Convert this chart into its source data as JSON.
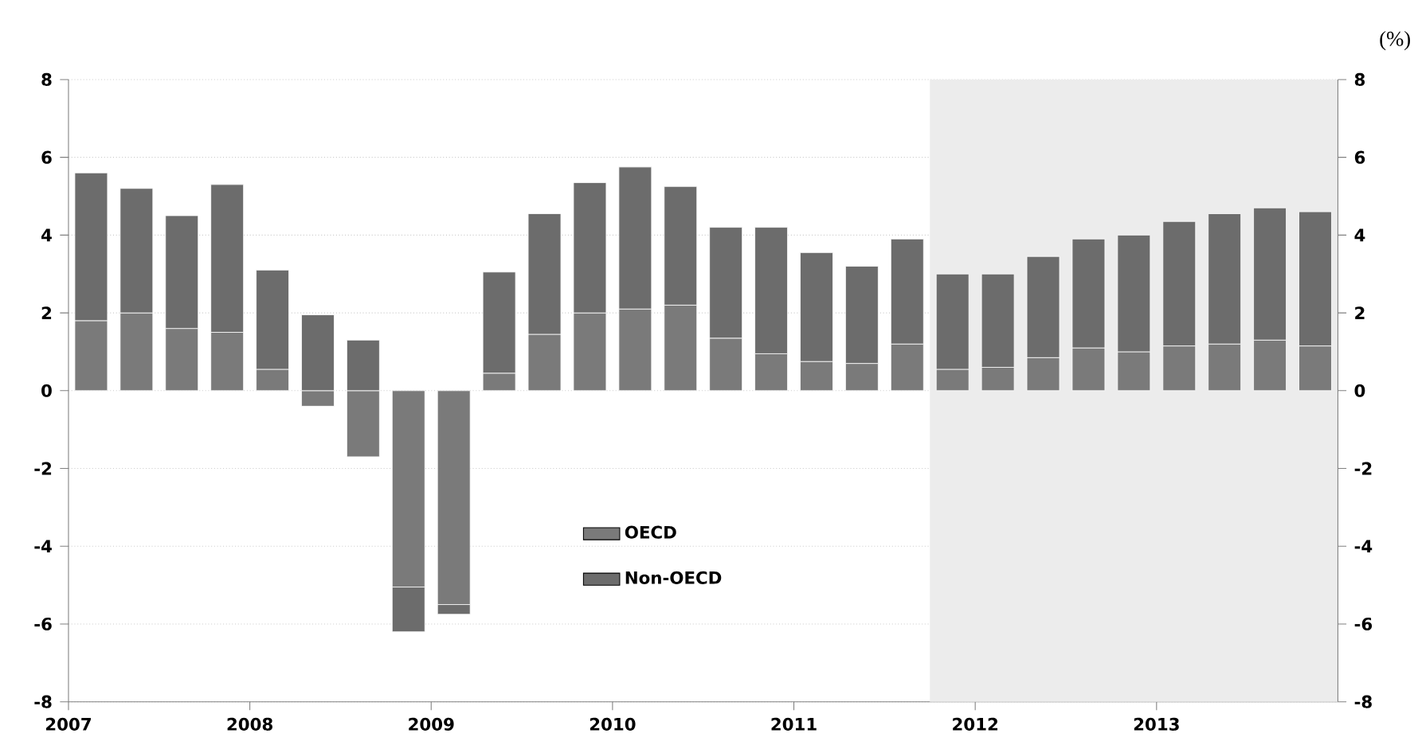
{
  "chart_data": {
    "type": "bar",
    "stacked": true,
    "y2label": "(%)",
    "x": [
      2007.125,
      2007.375,
      2007.625,
      2007.875,
      2008.125,
      2008.375,
      2008.625,
      2008.875,
      2009.125,
      2009.375,
      2009.625,
      2009.875,
      2010.125,
      2010.375,
      2010.625,
      2010.875,
      2011.125,
      2011.375,
      2011.625,
      2011.875,
      2012.125,
      2012.375,
      2012.625,
      2012.875,
      2013.125,
      2013.375,
      2013.625,
      2013.875
    ],
    "series": [
      {
        "name": "OECD",
        "color": "#7a7a7a",
        "values": [
          1.8,
          2.0,
          1.6,
          1.5,
          0.55,
          -0.4,
          -1.7,
          -5.05,
          -5.5,
          0.45,
          1.45,
          2.0,
          2.1,
          2.2,
          1.35,
          0.95,
          0.75,
          0.7,
          1.2,
          0.55,
          0.6,
          0.85,
          1.1,
          1.0,
          1.15,
          1.2,
          1.3,
          1.15
        ]
      },
      {
        "name": "Non-OECD",
        "color": "#6c6c6c",
        "values": [
          3.8,
          3.2,
          2.9,
          3.8,
          2.55,
          1.95,
          1.3,
          -1.15,
          -0.25,
          2.6,
          3.1,
          3.35,
          3.65,
          3.05,
          2.85,
          3.25,
          2.8,
          2.5,
          2.7,
          2.45,
          2.4,
          2.6,
          2.8,
          3.0,
          3.2,
          3.35,
          3.4,
          3.45
        ]
      }
    ],
    "xlim": [
      2007,
      2014
    ],
    "xticks": [
      2007,
      2008,
      2009,
      2010,
      2011,
      2012,
      2013
    ],
    "ylim": [
      -8,
      8
    ],
    "yticks": [
      -8,
      -6,
      -4,
      -2,
      0,
      2,
      4,
      6,
      8
    ],
    "y2lim": [
      -8,
      8
    ],
    "y2ticks": [
      -8,
      -6,
      -4,
      -2,
      0,
      2,
      4,
      6,
      8
    ],
    "bands": [
      {
        "axis": "x",
        "from": 2011.75,
        "to": 2014,
        "color": "#ececec"
      }
    ],
    "grid": "y",
    "legend": "bottom"
  }
}
